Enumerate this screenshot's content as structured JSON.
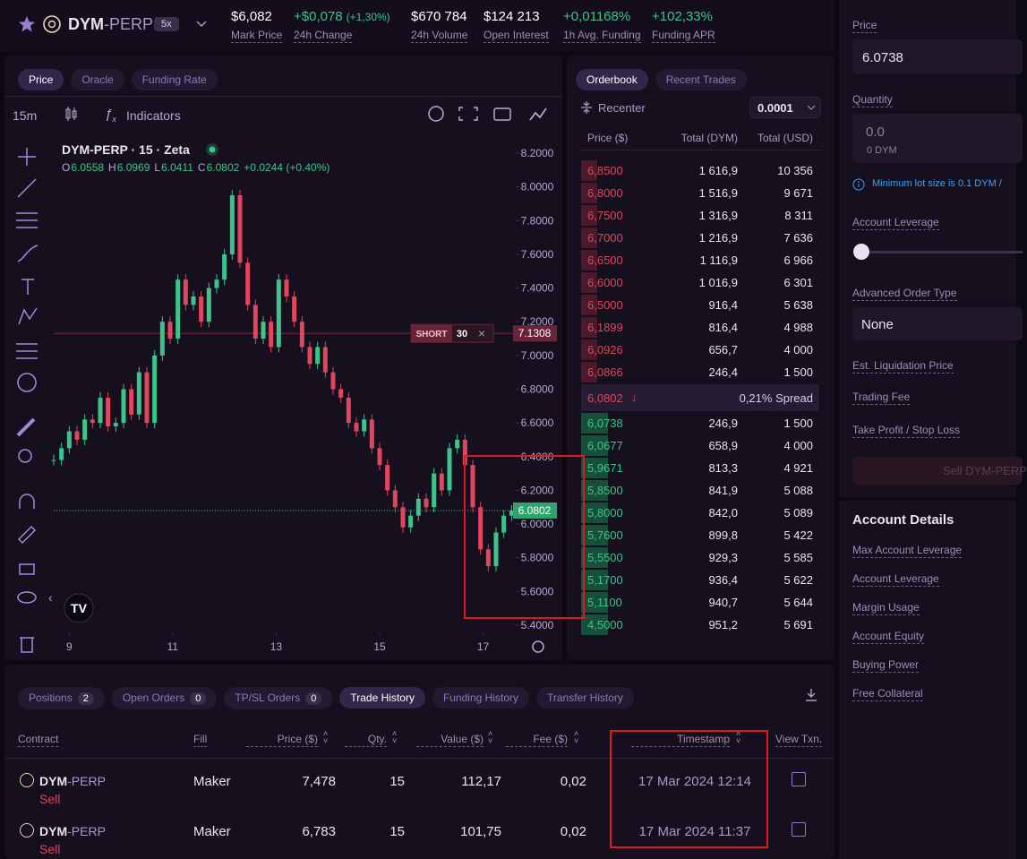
{
  "header": {
    "market": "DYM",
    "suffix": "-PERP",
    "leverage": "5x",
    "stats": [
      {
        "value": "$6,082",
        "label": "Mark Price"
      },
      {
        "value": "+$0,078",
        "change": "(+1,30%)",
        "label": "24h Change"
      },
      {
        "value": "$670 784",
        "label": "24h Volume"
      },
      {
        "value": "$124 213",
        "label": "Open Interest"
      },
      {
        "value": "+0,01168%",
        "label": "1h Avg. Funding"
      },
      {
        "value": "+102,33%",
        "label": "Funding APR"
      }
    ]
  },
  "chart_panel": {
    "tabs": [
      "Price",
      "Oracle",
      "Funding Rate"
    ],
    "interval": "15m",
    "indicators": "Indicators",
    "title": "DYM-PERP · 15 · Zeta",
    "ohlc": [
      {
        "key": "O",
        "value": "6.0558"
      },
      {
        "key": "H",
        "value": "6.0969"
      },
      {
        "key": "L",
        "value": "6.0411"
      },
      {
        "key": "C",
        "value": "6.0802"
      }
    ],
    "change": "+0.0244 (+0.40%)",
    "chart": {
      "type": "candlestick",
      "ylim": [
        5.4,
        8.2
      ],
      "yticks": [
        {
          "value": 8.2,
          "label": "8.2000"
        },
        {
          "value": 8.0,
          "label": "8.0000"
        },
        {
          "value": 7.8,
          "label": "7.8000"
        },
        {
          "value": 7.6,
          "label": "7.6000"
        },
        {
          "value": 7.4,
          "label": "7.4000"
        },
        {
          "value": 7.2,
          "label": "7.2000"
        },
        {
          "value": 7.0,
          "label": "7.0000"
        },
        {
          "value": 6.8,
          "label": "6.8000"
        },
        {
          "value": 6.6,
          "label": "6.6000"
        },
        {
          "value": 6.4,
          "label": "6.4000"
        },
        {
          "value": 6.2,
          "label": "6.2000"
        },
        {
          "value": 6.0,
          "label": "6.0000"
        },
        {
          "value": 5.8,
          "label": "5.8000"
        },
        {
          "value": 5.6,
          "label": "5.6000"
        },
        {
          "value": 5.4,
          "label": "5.4000"
        }
      ],
      "xlim": [
        8.7,
        17.7
      ],
      "xticks": [
        9,
        11,
        13,
        15,
        17
      ],
      "x": [
        8.7,
        8.85,
        9.0,
        9.15,
        9.3,
        9.45,
        9.6,
        9.75,
        9.9,
        10.05,
        10.2,
        10.35,
        10.5,
        10.65,
        10.8,
        10.95,
        11.1,
        11.25,
        11.4,
        11.55,
        11.7,
        11.85,
        12.0,
        12.15,
        12.3,
        12.45,
        12.6,
        12.75,
        12.9,
        13.05,
        13.2,
        13.35,
        13.5,
        13.65,
        13.8,
        13.95,
        14.1,
        14.25,
        14.4,
        14.55,
        14.7,
        14.85,
        15.0,
        15.15,
        15.3,
        15.45,
        15.6,
        15.75,
        15.9,
        16.05,
        16.2,
        16.35,
        16.5,
        16.65,
        16.8,
        16.95,
        17.1,
        17.25,
        17.4,
        17.55
      ],
      "close": [
        6.38,
        6.45,
        6.55,
        6.5,
        6.62,
        6.6,
        6.75,
        6.58,
        6.6,
        6.8,
        6.65,
        6.9,
        6.6,
        7.0,
        7.2,
        7.1,
        7.45,
        7.3,
        7.35,
        7.2,
        7.4,
        7.45,
        7.6,
        7.95,
        7.55,
        7.3,
        7.1,
        7.2,
        7.05,
        7.45,
        7.35,
        7.2,
        7.05,
        6.95,
        7.05,
        6.9,
        6.8,
        6.75,
        6.6,
        6.55,
        6.62,
        6.45,
        6.35,
        6.2,
        6.1,
        5.98,
        6.05,
        6.15,
        6.1,
        6.3,
        6.2,
        6.45,
        6.5,
        6.35,
        6.1,
        5.85,
        5.75,
        5.95,
        6.05,
        6.08
      ],
      "position": {
        "side": "SHORT",
        "size": "30",
        "price": 7.1308
      },
      "last_price": 6.0802
    }
  },
  "book": {
    "tabs": [
      "Orderbook",
      "Recent Trades"
    ],
    "recenter": "Recenter",
    "tick_size": "0.0001",
    "columns": [
      "Price ($)",
      "Total (DYM)",
      "Total (USD)"
    ],
    "asks": [
      [
        "6,8500",
        "1 616,9",
        "10 356"
      ],
      [
        "6,8000",
        "1 516,9",
        "9 671"
      ],
      [
        "6,7500",
        "1 316,9",
        "8 311"
      ],
      [
        "6,7000",
        "1 216,9",
        "7 636"
      ],
      [
        "6,6500",
        "1 116,9",
        "6 966"
      ],
      [
        "6,6000",
        "1 016,9",
        "6 301"
      ],
      [
        "6,5000",
        "916,4",
        "5 638"
      ],
      [
        "6,1899",
        "816,4",
        "4 988"
      ],
      [
        "6,0926",
        "656,7",
        "4 000"
      ],
      [
        "6,0866",
        "246,4",
        "1 500"
      ]
    ],
    "mid": {
      "price": "6,0802",
      "arrow": "↓",
      "spread": "0,21% Spread"
    },
    "bids": [
      [
        "6,0738",
        "246,9",
        "1 500"
      ],
      [
        "6,0677",
        "658,9",
        "4 000"
      ],
      [
        "5,9671",
        "813,3",
        "4 921"
      ],
      [
        "5,8500",
        "841,9",
        "5 088"
      ],
      [
        "5,8000",
        "842,0",
        "5 089"
      ],
      [
        "5,7600",
        "899,8",
        "5 422"
      ],
      [
        "5,5500",
        "929,3",
        "5 585"
      ],
      [
        "5,1700",
        "936,4",
        "5 622"
      ],
      [
        "5,1100",
        "940,7",
        "5 644"
      ],
      [
        "4,5000",
        "951,2",
        "5 691"
      ]
    ]
  },
  "order_form": {
    "price_label": "Price",
    "price": "6.0738",
    "quantity_label": "Quantity",
    "quantity": "0.0",
    "quantity_unit": "0 DYM",
    "lot_note": "Minimum lot size is 0.1 DYM /",
    "leverage_label": "Account Leverage",
    "order_type_label": "Advanced Order Type",
    "order_type": "None",
    "fields": [
      "Est. Liquidation Price",
      "Trading Fee",
      "Take Profit / Stop Loss"
    ],
    "submit": "Sell DYM-PERP"
  },
  "account": {
    "title": "Account Details",
    "items": [
      "Max Account Leverage",
      "Account Leverage",
      "Margin Usage",
      "Account Equity",
      "Buying Power",
      "Free Collateral"
    ]
  },
  "trades": {
    "tabs": [
      {
        "label": "Positions",
        "count": "2"
      },
      {
        "label": "Open Orders",
        "count": "0"
      },
      {
        "label": "TP/SL Orders",
        "count": "0"
      },
      {
        "label": "Trade History"
      },
      {
        "label": "Funding History"
      },
      {
        "label": "Transfer History"
      }
    ],
    "columns": [
      "Contract",
      "Fill",
      "Price ($)",
      "Qty.",
      "Value ($)",
      "Fee ($)",
      "Timestamp",
      "View Txn."
    ],
    "rows": [
      {
        "base": "DYM",
        "suffix": "-PERP",
        "side": "Sell",
        "fill": "Maker",
        "price": "7,478",
        "qty": "15",
        "value": "112,17",
        "fee": "0,02",
        "timestamp": "17 Mar 2024 12:14"
      },
      {
        "base": "DYM",
        "suffix": "-PERP",
        "side": "Sell",
        "fill": "Maker",
        "price": "6,783",
        "qty": "15",
        "value": "101,75",
        "fee": "0,02",
        "timestamp": "17 Mar 2024 11:37"
      }
    ]
  }
}
